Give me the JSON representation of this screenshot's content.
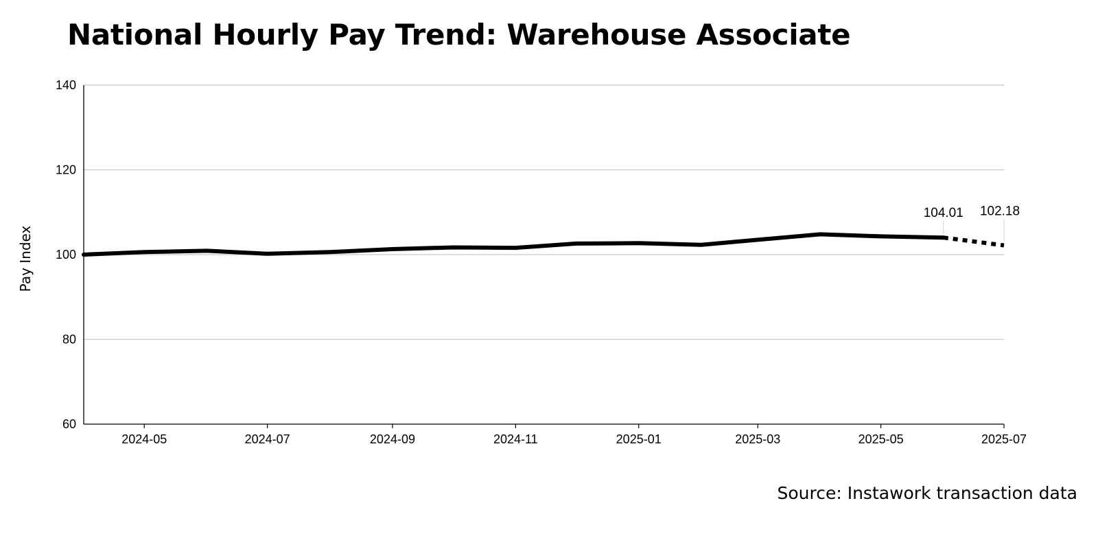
{
  "chart_data": {
    "type": "line",
    "title": "National Hourly Pay Trend: Warehouse Associate",
    "xlabel": "",
    "ylabel": "Pay Index",
    "source": "Source: Instawork transaction data",
    "ylim": [
      60,
      140
    ],
    "yticks": [
      60,
      80,
      100,
      120,
      140
    ],
    "xlim": [
      "2024-04-01",
      "2025-07-01"
    ],
    "xticks": [
      "2024-05",
      "2024-07",
      "2024-09",
      "2024-11",
      "2025-01",
      "2025-03",
      "2025-05",
      "2025-07"
    ],
    "grid": "horizontal",
    "legend": "none",
    "series": [
      {
        "style": "solid",
        "color": "#000000",
        "points": [
          {
            "x": "2024-04-01",
            "y": 100.0
          },
          {
            "x": "2024-05-01",
            "y": 100.6
          },
          {
            "x": "2024-06-01",
            "y": 100.9
          },
          {
            "x": "2024-07-01",
            "y": 100.2
          },
          {
            "x": "2024-08-01",
            "y": 100.6
          },
          {
            "x": "2024-09-01",
            "y": 101.3
          },
          {
            "x": "2024-10-01",
            "y": 101.7
          },
          {
            "x": "2024-11-01",
            "y": 101.6
          },
          {
            "x": "2024-12-01",
            "y": 102.6
          },
          {
            "x": "2025-01-01",
            "y": 102.7
          },
          {
            "x": "2025-02-01",
            "y": 102.3
          },
          {
            "x": "2025-03-01",
            "y": 103.5
          },
          {
            "x": "2025-04-01",
            "y": 104.8
          },
          {
            "x": "2025-05-01",
            "y": 104.3
          },
          {
            "x": "2025-06-01",
            "y": 104.01
          }
        ]
      },
      {
        "style": "dotted",
        "color": "#000000",
        "points": [
          {
            "x": "2025-06-01",
            "y": 104.01
          },
          {
            "x": "2025-07-01",
            "y": 102.18
          }
        ]
      }
    ],
    "annotations": [
      {
        "x": "2025-06-01",
        "y": 104.01,
        "label": "104.01"
      },
      {
        "x": "2025-07-01",
        "y": 102.18,
        "label": "102.18"
      }
    ]
  }
}
